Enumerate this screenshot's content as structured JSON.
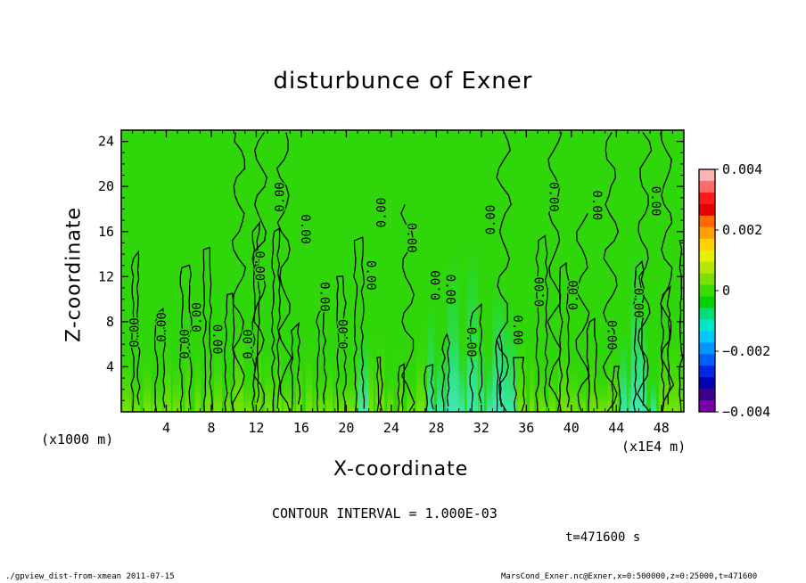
{
  "chart_data": {
    "type": "heatmap",
    "title": "disturbunce of Exner",
    "xlabel": "X-coordinate",
    "ylabel": "Z-coordinate",
    "x_unit_label": "(x1000 m)",
    "x_scale_label": "(x1E4 m)",
    "xlim": [
      0,
      50
    ],
    "ylim": [
      0,
      25
    ],
    "x_ticks": [
      "4",
      "8",
      "12",
      "16",
      "20",
      "24",
      "28",
      "32",
      "36",
      "40",
      "44",
      "48"
    ],
    "y_ticks": [
      "4",
      "8",
      "12",
      "16",
      "20",
      "24"
    ],
    "colorbar": {
      "range": [
        -0.004,
        0.004
      ],
      "tick_labels": [
        "0.004",
        "0.002",
        "0",
        "−0.002",
        "−0.004"
      ],
      "colors": [
        "#ffb3b3",
        "#ff6b6b",
        "#ff1a1a",
        "#e60000",
        "#ff6a00",
        "#ffa000",
        "#ffd200",
        "#e6f000",
        "#b4e600",
        "#78e100",
        "#3cdc00",
        "#00d200",
        "#00dc78",
        "#00e6c8",
        "#00c8ff",
        "#0096ff",
        "#0060ff",
        "#0028e6",
        "#0000b4",
        "#3c008c",
        "#7a00a8"
      ]
    },
    "contour_interval": "CONTOUR INTERVAL = 1.000E-03",
    "contour_label": "0.00",
    "contour_label_count": 26,
    "time_label": "t=471600 s",
    "field_description": "Mostly near-zero disturbance (green); vertical plumes of small positive values (yellow-green) near surface and small negative values (cyan) around x=28-34 and x=44-47"
  },
  "footer": {
    "left": "./gpview_dist-from-xmean  2011-07-15",
    "right": "MarsCond_Exner.nc@Exner,x=0:500000,z=0:25000,t=471600"
  }
}
